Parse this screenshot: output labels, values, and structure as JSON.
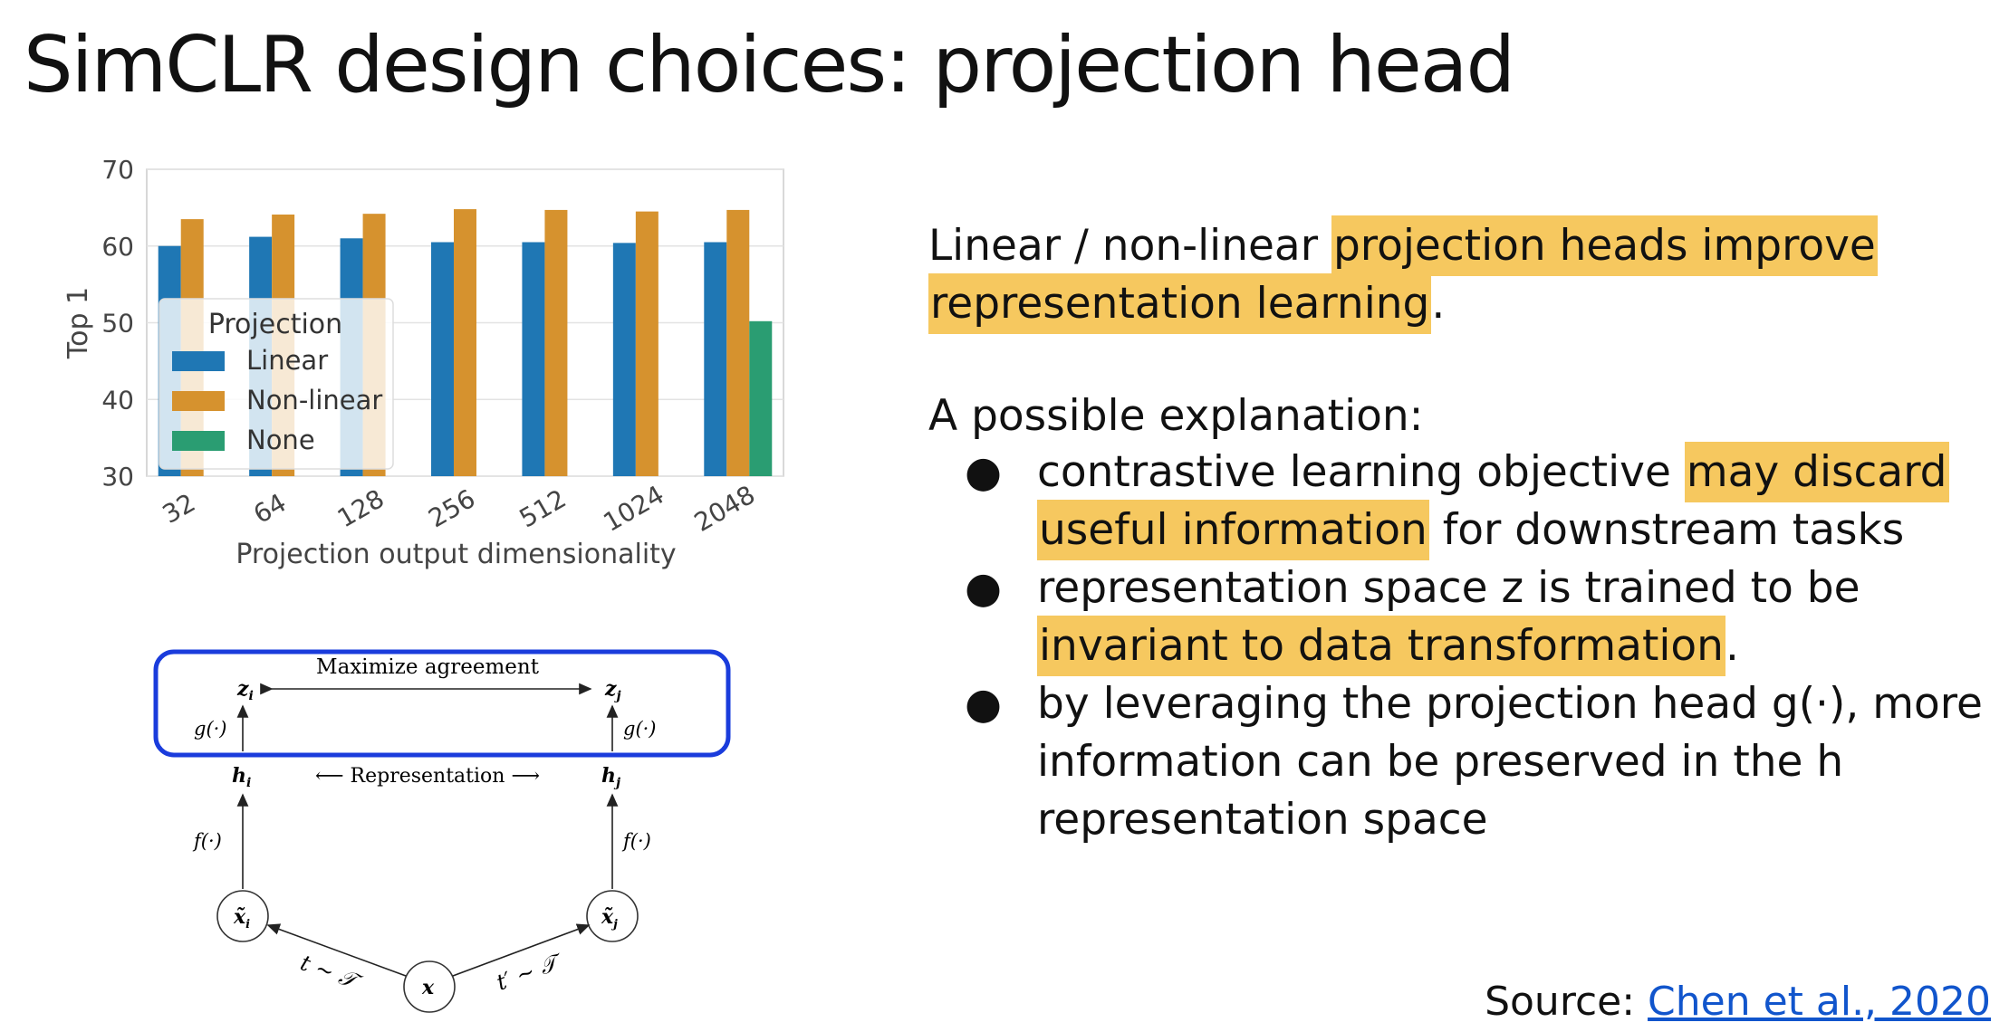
{
  "slide": {
    "title": "SimCLR design choices: projection head",
    "para1": {
      "pre": "Linear / non-linear ",
      "hl": "projection heads improve",
      "hl2": "representation learning",
      "post": "."
    },
    "explanation_label": "A possible explanation:",
    "bullets": [
      {
        "dot": "●",
        "l1_pre": "contrastive learning objective ",
        "l1_hl": "may discard",
        "l2_hl": "useful information",
        "l2_post": " for downstream tasks"
      },
      {
        "dot": "●",
        "l1": "representation space z is trained to be",
        "l2_hl": "invariant to data transformation",
        "l2_post": "."
      },
      {
        "dot": "●",
        "l1": "by leveraging the projection head g(·), more",
        "l2": "information can be preserved in the h",
        "l3": "representation space"
      }
    ],
    "source_label": "Source: ",
    "source_link": "Chen et al., 2020"
  },
  "chart_data": {
    "type": "bar",
    "categories": [
      "32",
      "64",
      "128",
      "256",
      "512",
      "1024",
      "2048"
    ],
    "series": [
      {
        "name": "Linear",
        "values": [
          60,
          61.2,
          61,
          60.5,
          60.5,
          60.4,
          60.5
        ],
        "color": "#1f77b4"
      },
      {
        "name": "Non-linear",
        "values": [
          63.5,
          64.1,
          64.2,
          64.8,
          64.7,
          64.5,
          64.7
        ],
        "color": "#d6922e"
      },
      {
        "name": "None",
        "values": [
          null,
          null,
          null,
          null,
          null,
          null,
          50.2
        ],
        "color": "#2a9d72"
      }
    ],
    "xlabel": "Projection output dimensionality",
    "ylabel": "Top 1",
    "ylim": [
      30,
      70
    ],
    "yticks": [
      30,
      40,
      50,
      60,
      70
    ],
    "legend_title": "Projection",
    "legend_position": "center-left",
    "grid": true
  },
  "diagram": {
    "maximize": "Maximize agreement",
    "representation": "⟵ Representation ⟶",
    "zi": "z",
    "zj": "z",
    "hi": "h",
    "hj": "h",
    "sub_i": "i",
    "sub_j": "j",
    "g": "g(·)",
    "f": "f(·)",
    "xi": "x̃",
    "xj": "x̃",
    "x": "x",
    "t": "t ∼ 𝒯",
    "tp": "t′ ∼ 𝒯"
  }
}
